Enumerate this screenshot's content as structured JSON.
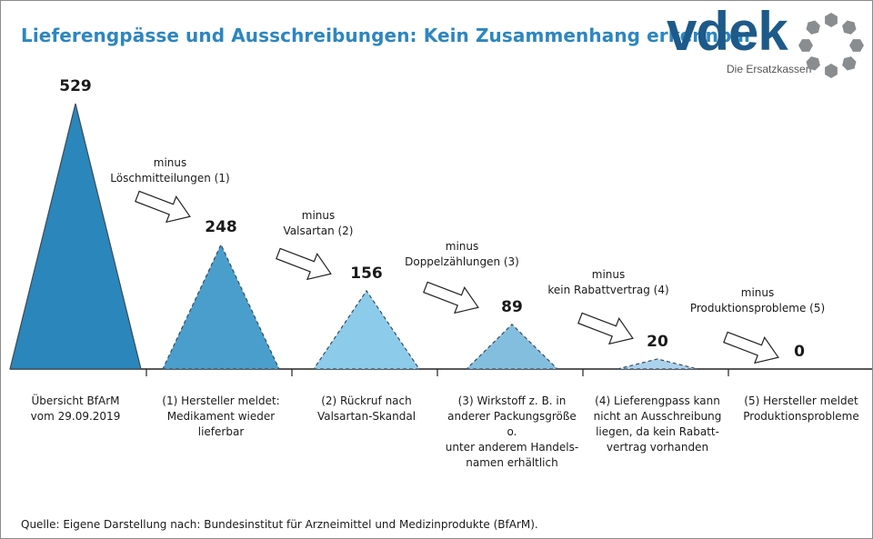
{
  "logo": {
    "word": "vdek",
    "tagline": "Die Ersatzkassen"
  },
  "source": "Quelle: Eigene Darstellung nach: Bundesinstitut für Arzneimittel und Medizinprodukte (BfArM).",
  "chart_data": {
    "type": "bar",
    "title": "Lieferengpässe und Ausschreibungen: Kein Zusammenhang erkennbar",
    "xlabel": "",
    "ylabel": "",
    "ylim": [
      0,
      529
    ],
    "categories": [
      "Übersicht BfArM\nvom 29.09.2019",
      "(1) Hersteller meldet:\nMedikament wieder\nlieferbar",
      "(2) Rückruf nach\nValsartan-Skandal",
      "(3) Wirkstoff z. B. in\nanderer Packungsgröße o.\nunter anderem Handels-\nnamen erhältlich",
      "(4) Lieferengpass kann\nnicht an Ausschreibung\nliegen, da kein Rabatt-\nvertrag vorhanden",
      "(5) Hersteller meldet\nProduktionsprobleme"
    ],
    "values": [
      529,
      248,
      156,
      89,
      20,
      0
    ],
    "transitions": [
      {
        "word": "minus",
        "text": "Löschmitteilungen (1)"
      },
      {
        "word": "minus",
        "text": "Valsartan (2)"
      },
      {
        "word": "minus",
        "text": "Doppelzählungen (3)"
      },
      {
        "word": "minus",
        "text": "kein Rabattvertrag (4)"
      },
      {
        "word": "minus",
        "text": "Produktionsprobleme (5)"
      }
    ],
    "colors": [
      "#2a86bb",
      "#4a9ecc",
      "#8ccbe9",
      "#84bedf",
      "#aad2ec",
      "#c7e2f3"
    ],
    "grid": false,
    "legend": "none"
  }
}
